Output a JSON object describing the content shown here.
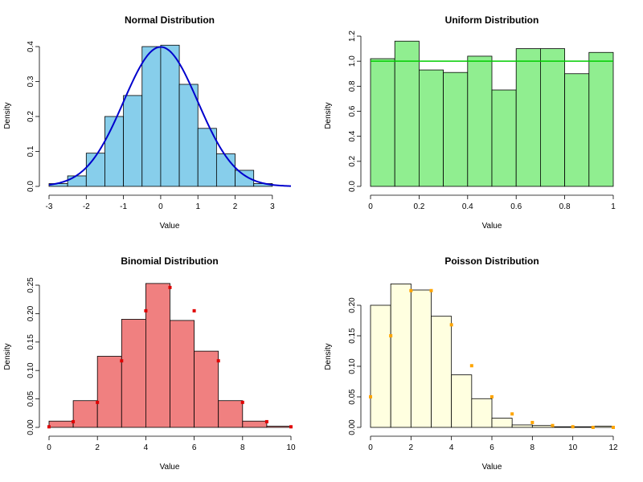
{
  "chart_data": [
    {
      "type": "bar",
      "title": "Normal Distribution",
      "xlabel": "Value",
      "ylabel": "Density",
      "xlim": [
        -3.0,
        3.5
      ],
      "ylim": [
        0,
        0.4
      ],
      "xticks": [
        -3,
        -2,
        -1,
        0,
        1,
        2,
        3
      ],
      "yticks": [
        0.0,
        0.1,
        0.2,
        0.3,
        0.4
      ],
      "bin_edges": [
        -3.0,
        -2.5,
        -2.0,
        -1.5,
        -1.0,
        -0.5,
        0.0,
        0.5,
        1.0,
        1.5,
        2.0,
        2.5,
        3.0
      ],
      "values": [
        0.008,
        0.03,
        0.095,
        0.2,
        0.26,
        0.4,
        0.404,
        0.292,
        0.166,
        0.093,
        0.046,
        0.008
      ],
      "bar_color": "#87CEEB",
      "overlay": {
        "type": "density-curve",
        "distribution": "normal",
        "mean": 0,
        "sd": 1,
        "color": "#0000CD"
      }
    },
    {
      "type": "bar",
      "title": "Uniform Distribution",
      "xlabel": "Value",
      "ylabel": "Density",
      "xlim": [
        0.0,
        1.0
      ],
      "ylim": [
        0,
        1.2
      ],
      "xticks": [
        0.0,
        0.2,
        0.4,
        0.6,
        0.8,
        1.0
      ],
      "yticks": [
        0.0,
        0.2,
        0.4,
        0.6,
        0.8,
        1.0,
        1.2
      ],
      "bin_edges": [
        0.0,
        0.1,
        0.2,
        0.3,
        0.4,
        0.5,
        0.6,
        0.7,
        0.8,
        0.9,
        1.0
      ],
      "values": [
        1.02,
        1.16,
        0.93,
        0.91,
        1.04,
        0.77,
        1.1,
        1.1,
        0.9,
        1.07
      ],
      "bar_color": "#90EE90",
      "overlay": {
        "type": "reference-line",
        "y": 1.0,
        "color": "#00CD00"
      }
    },
    {
      "type": "bar",
      "title": "Binomial Distribution",
      "xlabel": "Value",
      "ylabel": "Density",
      "xlim": [
        0,
        10
      ],
      "ylim": [
        0,
        0.25
      ],
      "xticks": [
        0,
        2,
        4,
        6,
        8,
        10
      ],
      "yticks": [
        0.0,
        0.05,
        0.1,
        0.15,
        0.2,
        0.25
      ],
      "bin_edges": [
        0,
        1,
        2,
        3,
        4,
        5,
        6,
        7,
        8,
        9,
        10
      ],
      "values": [
        0.011,
        0.047,
        0.125,
        0.19,
        0.253,
        0.188,
        0.134,
        0.047,
        0.011,
        0.002
      ],
      "bar_color": "#F08080",
      "points": {
        "x": [
          0,
          1,
          2,
          3,
          4,
          5,
          6,
          7,
          8,
          9,
          10
        ],
        "y": [
          0.001,
          0.01,
          0.044,
          0.117,
          0.205,
          0.246,
          0.205,
          0.117,
          0.044,
          0.01,
          0.001
        ],
        "color": "#E00000"
      }
    },
    {
      "type": "bar",
      "title": "Poisson Distribution",
      "xlabel": "Value",
      "ylabel": "Density",
      "xlim": [
        0,
        12
      ],
      "ylim": [
        0,
        0.2
      ],
      "xticks": [
        0,
        2,
        4,
        6,
        8,
        10,
        12
      ],
      "yticks": [
        0.0,
        0.05,
        0.1,
        0.15,
        0.2
      ],
      "bin_edges": [
        0,
        1,
        2,
        3,
        4,
        5,
        6,
        7,
        8,
        9,
        10,
        11,
        12
      ],
      "values": [
        0.2,
        0.235,
        0.225,
        0.182,
        0.086,
        0.047,
        0.015,
        0.004,
        0.003,
        0.001,
        0.001,
        0.002
      ],
      "bar_color": "#FFFFE0",
      "points": {
        "x": [
          0,
          1,
          2,
          3,
          4,
          5,
          6,
          7,
          8,
          9,
          10,
          11,
          12
        ],
        "y": [
          0.05,
          0.15,
          0.224,
          0.224,
          0.168,
          0.101,
          0.05,
          0.022,
          0.008,
          0.003,
          0.001,
          0.0,
          0.0
        ],
        "color": "#FFA500"
      }
    }
  ]
}
